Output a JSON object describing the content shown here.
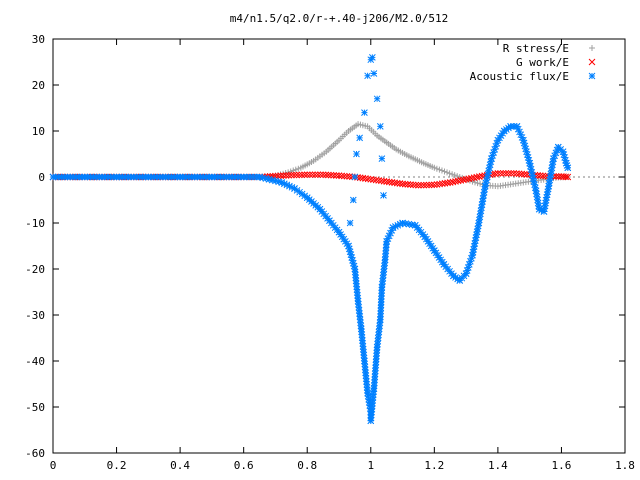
{
  "chart_data": {
    "type": "scatter",
    "title": "m4/n1.5/q2.0/r-+.40-j206/M2.0/512",
    "xlabel": "",
    "ylabel": "",
    "xlim": [
      0,
      1.8
    ],
    "ylim": [
      -60,
      30
    ],
    "x_ticks": [
      "0",
      "0.2",
      "0.4",
      "0.6",
      "0.8",
      "1",
      "1.2",
      "1.4",
      "1.6",
      "1.8"
    ],
    "y_ticks": [
      "30",
      "20",
      "10",
      "0",
      "-10",
      "-20",
      "-30",
      "-40",
      "-50",
      "-60"
    ],
    "grid": false,
    "legend_position": "top-right",
    "series": [
      {
        "name": "R stress/E",
        "marker": "plus",
        "color": "#a0a0a0",
        "points": [
          [
            0.0,
            0
          ],
          [
            0.1,
            0
          ],
          [
            0.2,
            0
          ],
          [
            0.3,
            0
          ],
          [
            0.4,
            0
          ],
          [
            0.5,
            0
          ],
          [
            0.6,
            0
          ],
          [
            0.65,
            0
          ],
          [
            0.7,
            0.3
          ],
          [
            0.74,
            1.0
          ],
          [
            0.78,
            2.0
          ],
          [
            0.82,
            3.5
          ],
          [
            0.86,
            5.5
          ],
          [
            0.9,
            8.0
          ],
          [
            0.93,
            10.0
          ],
          [
            0.96,
            11.5
          ],
          [
            0.99,
            11.0
          ],
          [
            1.02,
            9.0
          ],
          [
            1.05,
            7.5
          ],
          [
            1.08,
            6.0
          ],
          [
            1.12,
            4.5
          ],
          [
            1.16,
            3.2
          ],
          [
            1.2,
            2.0
          ],
          [
            1.24,
            1.0
          ],
          [
            1.28,
            0.0
          ],
          [
            1.32,
            -1.0
          ],
          [
            1.36,
            -1.8
          ],
          [
            1.4,
            -2.0
          ],
          [
            1.44,
            -1.6
          ],
          [
            1.48,
            -1.2
          ],
          [
            1.52,
            -0.8
          ],
          [
            1.56,
            -0.4
          ],
          [
            1.59,
            -0.1
          ],
          [
            1.62,
            0
          ]
        ]
      },
      {
        "name": "G work/E",
        "marker": "cross",
        "color": "#ff0000",
        "points": [
          [
            0.0,
            0
          ],
          [
            0.1,
            0
          ],
          [
            0.2,
            0
          ],
          [
            0.3,
            0
          ],
          [
            0.4,
            0
          ],
          [
            0.5,
            0
          ],
          [
            0.6,
            0
          ],
          [
            0.65,
            0
          ],
          [
            0.7,
            0.2
          ],
          [
            0.75,
            0.4
          ],
          [
            0.8,
            0.5
          ],
          [
            0.85,
            0.5
          ],
          [
            0.9,
            0.3
          ],
          [
            0.95,
            0.0
          ],
          [
            1.0,
            -0.5
          ],
          [
            1.05,
            -1.0
          ],
          [
            1.1,
            -1.5
          ],
          [
            1.15,
            -1.8
          ],
          [
            1.2,
            -1.7
          ],
          [
            1.25,
            -1.2
          ],
          [
            1.3,
            -0.5
          ],
          [
            1.35,
            0.2
          ],
          [
            1.4,
            0.8
          ],
          [
            1.45,
            0.8
          ],
          [
            1.5,
            0.5
          ],
          [
            1.55,
            0.2
          ],
          [
            1.6,
            0.1
          ],
          [
            1.62,
            0
          ]
        ]
      },
      {
        "name": "Acoustic flux/E",
        "marker": "star",
        "color": "#0080ff",
        "points": [
          [
            0.0,
            0
          ],
          [
            0.1,
            0
          ],
          [
            0.2,
            0
          ],
          [
            0.3,
            0
          ],
          [
            0.4,
            0
          ],
          [
            0.5,
            0
          ],
          [
            0.6,
            0
          ],
          [
            0.65,
            0
          ],
          [
            0.68,
            -0.5
          ],
          [
            0.72,
            -1.2
          ],
          [
            0.76,
            -2.5
          ],
          [
            0.8,
            -4.5
          ],
          [
            0.84,
            -7.0
          ],
          [
            0.87,
            -9.5
          ],
          [
            0.9,
            -12.0
          ],
          [
            0.93,
            -15.0
          ],
          [
            0.95,
            -20.0
          ],
          [
            0.96,
            -27.0
          ],
          [
            0.97,
            -33.0
          ],
          [
            0.98,
            -40.0
          ],
          [
            0.99,
            -47.0
          ],
          [
            1.0,
            -51.0
          ],
          [
            1.0,
            -53.0
          ],
          [
            1.01,
            -46.0
          ],
          [
            1.02,
            -37.0
          ],
          [
            1.03,
            -31.0
          ],
          [
            1.035,
            -24.0
          ],
          [
            1.045,
            -18.0
          ],
          [
            1.05,
            -14.0
          ],
          [
            1.07,
            -11.0
          ],
          [
            1.1,
            -10.0
          ],
          [
            1.14,
            -10.5
          ],
          [
            1.17,
            -13.0
          ],
          [
            1.2,
            -16.0
          ],
          [
            1.23,
            -19.0
          ],
          [
            1.26,
            -21.5
          ],
          [
            1.28,
            -22.5
          ],
          [
            1.3,
            -21.0
          ],
          [
            1.32,
            -17.0
          ],
          [
            1.34,
            -10.0
          ],
          [
            1.36,
            -2.0
          ],
          [
            1.38,
            4.0
          ],
          [
            1.4,
            8.0
          ],
          [
            1.42,
            10.0
          ],
          [
            1.44,
            11.0
          ],
          [
            1.46,
            11.0
          ],
          [
            1.48,
            8.0
          ],
          [
            1.5,
            3.0
          ],
          [
            1.52,
            -3.0
          ],
          [
            1.53,
            -7.0
          ],
          [
            1.545,
            -7.5
          ],
          [
            1.56,
            -2.0
          ],
          [
            1.575,
            4.0
          ],
          [
            1.59,
            6.5
          ],
          [
            1.605,
            5.5
          ],
          [
            1.615,
            3.0
          ],
          [
            1.62,
            2.0
          ],
          [
            0.935,
            -10.0
          ],
          [
            0.945,
            -5.0
          ],
          [
            0.95,
            0.0
          ],
          [
            0.955,
            5.0
          ],
          [
            0.965,
            8.5
          ],
          [
            0.98,
            14.0
          ],
          [
            0.99,
            22.0
          ],
          [
            1.0,
            25.5
          ],
          [
            1.005,
            26.0
          ],
          [
            1.01,
            22.5
          ],
          [
            1.02,
            17.0
          ],
          [
            1.03,
            11.0
          ],
          [
            1.035,
            4.0
          ],
          [
            1.04,
            -4.0
          ]
        ]
      }
    ]
  }
}
